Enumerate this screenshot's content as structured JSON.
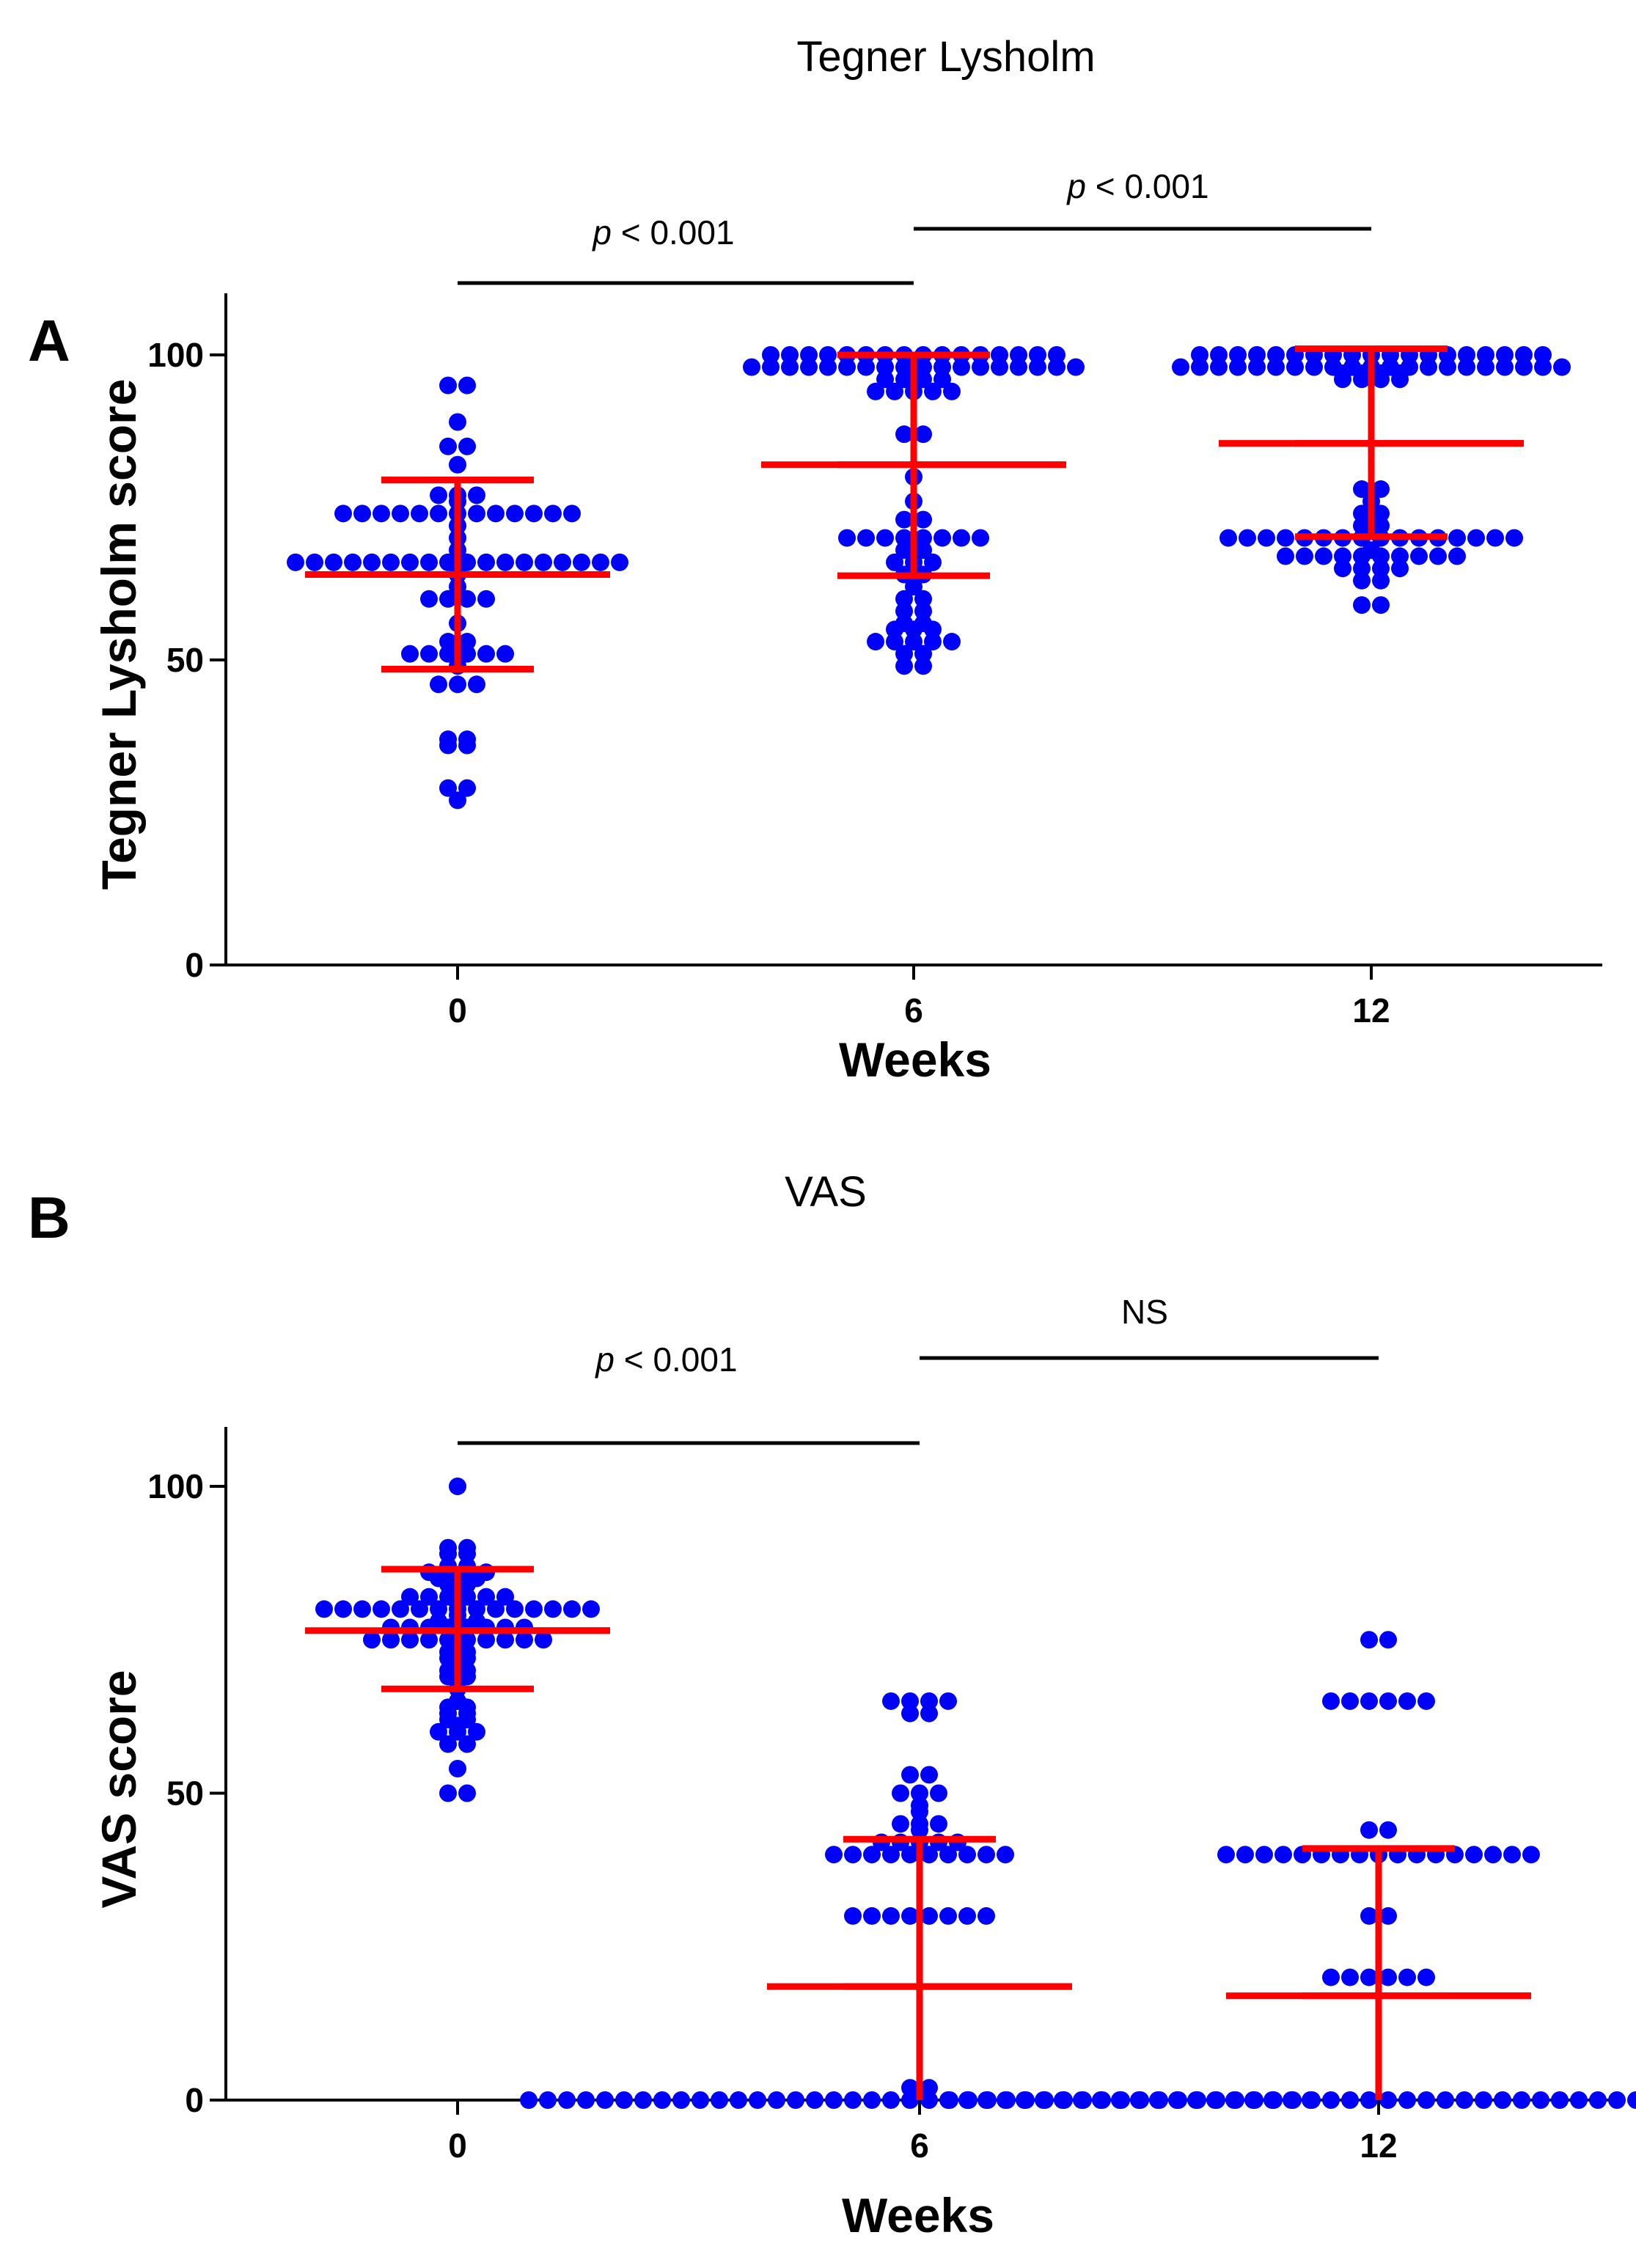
{
  "chart_data": [
    {
      "type": "scatter",
      "panel_label": "A",
      "title": "Tegner Lysholm",
      "xlabel": "Weeks",
      "ylabel": "Tegner Lysholm score",
      "ylim": [
        0,
        110
      ],
      "yticks": [
        0,
        50,
        100
      ],
      "categories": [
        "0",
        "6",
        "12"
      ],
      "summary": [
        {
          "category": "0",
          "mean": 64,
          "lower": 48.5,
          "upper": 79.5
        },
        {
          "category": "6",
          "mean": 82,
          "lower": 63.8,
          "upper": 100
        },
        {
          "category": "12",
          "mean": 85.5,
          "lower": 70.2,
          "upper": 101
        }
      ],
      "series": [
        {
          "name": "0",
          "values": [
            95,
            95,
            89,
            85,
            85,
            82,
            77,
            77,
            77,
            76,
            74,
            74,
            74,
            74,
            74,
            74,
            74,
            74,
            74,
            74,
            74,
            74,
            74,
            72,
            70,
            68,
            66,
            66,
            66,
            66,
            66,
            66,
            66,
            66,
            66,
            66,
            66,
            66,
            66,
            66,
            66,
            66,
            66,
            66,
            64,
            62,
            60,
            60,
            60,
            60,
            56,
            53,
            53,
            51,
            51,
            51,
            51,
            51,
            51,
            49,
            46,
            46,
            46,
            37,
            37,
            36,
            36,
            29,
            29,
            27
          ]
        },
        {
          "name": "6",
          "values": [
            100,
            100,
            100,
            100,
            100,
            100,
            100,
            100,
            100,
            100,
            100,
            100,
            100,
            100,
            100,
            100,
            98,
            98,
            98,
            98,
            98,
            98,
            98,
            98,
            98,
            98,
            98,
            98,
            98,
            98,
            98,
            98,
            98,
            98,
            96,
            96,
            96,
            96,
            94,
            94,
            94,
            94,
            94,
            87,
            87,
            80,
            76,
            73,
            73,
            70,
            70,
            70,
            70,
            70,
            70,
            70,
            70,
            68,
            68,
            66,
            66,
            66,
            64,
            64,
            62,
            60,
            60,
            58,
            58,
            56,
            56,
            55,
            55,
            55,
            53,
            53,
            53,
            53,
            53,
            51,
            51,
            49,
            49
          ]
        },
        {
          "name": "12",
          "values": [
            100,
            100,
            100,
            100,
            100,
            100,
            100,
            100,
            100,
            100,
            100,
            100,
            100,
            100,
            100,
            100,
            100,
            100,
            100,
            98,
            98,
            98,
            98,
            98,
            98,
            98,
            98,
            98,
            98,
            98,
            98,
            98,
            98,
            98,
            98,
            98,
            98,
            98,
            98,
            98,
            97,
            97,
            97,
            97,
            96,
            96,
            96,
            96,
            78,
            78,
            76,
            74,
            74,
            72,
            72,
            70,
            70,
            70,
            70,
            70,
            70,
            70,
            70,
            70,
            70,
            70,
            70,
            70,
            70,
            70,
            70,
            68,
            67,
            67,
            67,
            67,
            67,
            67,
            67,
            67,
            67,
            67,
            65,
            65,
            65,
            65,
            63,
            63,
            59,
            59
          ]
        }
      ],
      "significance": [
        {
          "from": "0",
          "to": "6",
          "label": "p < 0.001",
          "italic_part": "p",
          "rest": " < 0.001"
        },
        {
          "from": "6",
          "to": "12",
          "label": "p < 0.001",
          "italic_part": "p",
          "rest": " < 0.001"
        }
      ]
    },
    {
      "type": "scatter",
      "panel_label": "B",
      "title": "VAS",
      "xlabel": "Weeks",
      "ylabel": "VAS score",
      "ylim": [
        0,
        110
      ],
      "yticks": [
        0,
        50,
        100
      ],
      "categories": [
        "0",
        "6",
        "12"
      ],
      "summary": [
        {
          "category": "0",
          "mean": 76.5,
          "lower": 67,
          "upper": 86.5
        },
        {
          "category": "6",
          "mean": 18.5,
          "lower": 0,
          "upper": 42.5
        },
        {
          "category": "12",
          "mean": 17,
          "lower": 0,
          "upper": 41
        }
      ],
      "series": [
        {
          "name": "0",
          "values": [
            100,
            90,
            90,
            89,
            89,
            87,
            87,
            86,
            86,
            86,
            86,
            85,
            85,
            85,
            84,
            84,
            83,
            82,
            82,
            82,
            82,
            82,
            82,
            81,
            80,
            80,
            80,
            80,
            80,
            80,
            80,
            80,
            80,
            80,
            80,
            80,
            80,
            80,
            80,
            79,
            78,
            78,
            78,
            77,
            77,
            77,
            77,
            77,
            77,
            77,
            77,
            75,
            75,
            75,
            75,
            75,
            75,
            75,
            75,
            75,
            75,
            74,
            73,
            73,
            72,
            72,
            70,
            70,
            69,
            69,
            67,
            65,
            64,
            64,
            63,
            63,
            62,
            62,
            61,
            60,
            60,
            60,
            58,
            58,
            54,
            50,
            50
          ]
        },
        {
          "name": "6",
          "values": [
            65,
            65,
            65,
            65,
            63,
            63,
            53,
            53,
            50,
            50,
            50,
            48,
            47,
            45,
            45,
            45,
            44,
            42,
            42,
            42,
            42,
            42,
            40,
            40,
            40,
            40,
            40,
            40,
            40,
            40,
            40,
            40,
            30,
            30,
            30,
            30,
            30,
            30,
            30,
            30,
            2,
            2,
            0,
            0,
            0,
            0,
            0,
            0,
            0,
            0,
            0,
            0,
            0,
            0,
            0,
            0,
            0,
            0,
            0,
            0,
            0,
            0,
            0,
            0,
            0,
            0,
            0,
            0,
            0,
            0,
            0,
            0,
            0,
            0,
            0,
            0,
            0,
            0,
            0,
            0,
            0,
            0,
            0,
            0
          ]
        },
        {
          "name": "12",
          "values": [
            75,
            75,
            65,
            65,
            65,
            65,
            65,
            65,
            44,
            44,
            40,
            40,
            40,
            40,
            40,
            40,
            40,
            40,
            40,
            40,
            40,
            40,
            40,
            40,
            40,
            40,
            40,
            30,
            30,
            20,
            20,
            20,
            20,
            20,
            20,
            0,
            0,
            0,
            0,
            0,
            0,
            0,
            0,
            0,
            0,
            0,
            0,
            0,
            0,
            0,
            0,
            0,
            0,
            0,
            0,
            0,
            0,
            0,
            0,
            0,
            0,
            0,
            0,
            0,
            0,
            0,
            0,
            0,
            0,
            0,
            0,
            0,
            0,
            0,
            0,
            0,
            0,
            0,
            0,
            0,
            0
          ]
        }
      ],
      "significance": [
        {
          "from": "0",
          "to": "6",
          "label": "p < 0.001",
          "italic_part": "p",
          "rest": " < 0.001"
        },
        {
          "from": "6",
          "to": "12",
          "label": "NS",
          "italic_part": "",
          "rest": "NS"
        }
      ]
    }
  ],
  "colors": {
    "points": "#0000ff",
    "summary": "#ff0000",
    "axes": "#000000"
  }
}
